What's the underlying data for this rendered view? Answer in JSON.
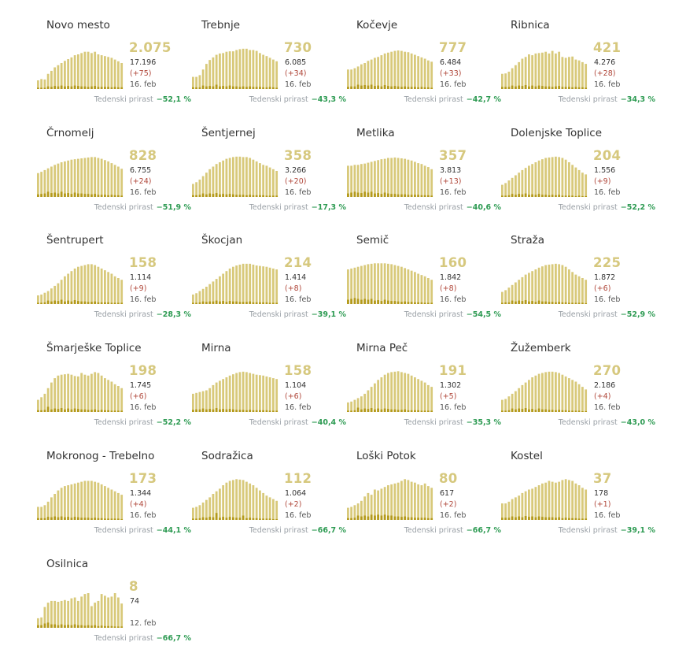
{
  "colors": {
    "bar_light": "#d8c97a",
    "bar_dark": "#b49a1c",
    "active_value": "#d6c87e",
    "new_cases": "#b0473a",
    "growth": "#2e9b53",
    "label_muted": "#9aa0a6"
  },
  "growth_label": "Tedenski prirast",
  "chart_data": [
    {
      "type": "bar",
      "title": "Novo mesto",
      "active": "2.075",
      "total": "17.196",
      "new": "(+75)",
      "date": "16. feb",
      "growth": "−52,1 %",
      "values": [
        20,
        23,
        22,
        35,
        42,
        50,
        55,
        60,
        65,
        69,
        73,
        78,
        80,
        83,
        86,
        86,
        83,
        86,
        80,
        78,
        76,
        74,
        72,
        68,
        64,
        60
      ],
      "new_values": [
        3,
        3,
        3,
        6,
        5,
        7,
        6,
        8,
        6,
        7,
        6,
        8,
        7,
        6,
        6,
        5,
        6,
        7,
        5,
        5,
        5,
        5,
        4,
        5,
        4,
        4
      ]
    },
    {
      "type": "bar",
      "title": "Trebnje",
      "active": "730",
      "total": "6.085",
      "new": "(+34)",
      "date": "16. feb",
      "growth": "−43,3 %",
      "values": [
        28,
        28,
        32,
        45,
        58,
        67,
        73,
        79,
        82,
        83,
        86,
        87,
        87,
        90,
        92,
        93,
        93,
        90,
        90,
        88,
        83,
        79,
        76,
        72,
        68,
        64
      ],
      "new_values": [
        4,
        4,
        4,
        8,
        6,
        7,
        6,
        10,
        6,
        7,
        6,
        8,
        6,
        6,
        5,
        6,
        5,
        6,
        5,
        5,
        5,
        4,
        4,
        5,
        4,
        3
      ]
    },
    {
      "type": "bar",
      "title": "Kočevje",
      "active": "777",
      "total": "6.484",
      "new": "(+33)",
      "date": "16. feb",
      "growth": "−42,7 %",
      "values": [
        45,
        45,
        48,
        52,
        57,
        60,
        65,
        68,
        72,
        74,
        78,
        82,
        84,
        86,
        88,
        89,
        88,
        86,
        85,
        82,
        79,
        76,
        73,
        70,
        66,
        63
      ],
      "new_values": [
        5,
        6,
        6,
        10,
        8,
        9,
        8,
        10,
        7,
        8,
        6,
        9,
        7,
        6,
        7,
        6,
        5,
        6,
        5,
        5,
        5,
        4,
        5,
        4,
        4,
        3
      ]
    },
    {
      "type": "bar",
      "title": "Ribnica",
      "active": "421",
      "total": "4.276",
      "new": "(+28)",
      "date": "16. feb",
      "growth": "−34,3 %",
      "values": [
        35,
        36,
        40,
        48,
        55,
        62,
        70,
        74,
        80,
        78,
        82,
        83,
        84,
        86,
        82,
        88,
        82,
        86,
        74,
        72,
        74,
        75,
        68,
        66,
        62,
        58
      ],
      "new_values": [
        5,
        5,
        5,
        8,
        6,
        8,
        7,
        9,
        6,
        8,
        6,
        8,
        7,
        6,
        6,
        5,
        6,
        7,
        5,
        5,
        5,
        4,
        5,
        4,
        4,
        3
      ]
    },
    {
      "type": "bar",
      "title": "Črnomelj",
      "active": "828",
      "total": "6.755",
      "new": "(+24)",
      "date": "16. feb",
      "growth": "−51,9 %",
      "values": [
        55,
        58,
        62,
        66,
        70,
        74,
        77,
        80,
        82,
        84,
        86,
        87,
        88,
        89,
        90,
        91,
        92,
        92,
        90,
        88,
        85,
        82,
        78,
        74,
        70,
        65
      ],
      "new_values": [
        6,
        7,
        8,
        12,
        9,
        10,
        8,
        12,
        8,
        9,
        7,
        10,
        8,
        8,
        7,
        7,
        6,
        7,
        5,
        5,
        5,
        4,
        5,
        4,
        4,
        3
      ]
    },
    {
      "type": "bar",
      "title": "Šentjernej",
      "active": "358",
      "total": "3.266",
      "new": "(+20)",
      "date": "16. feb",
      "growth": "−17,3 %",
      "values": [
        30,
        34,
        40,
        48,
        56,
        64,
        70,
        76,
        80,
        84,
        88,
        90,
        92,
        93,
        93,
        92,
        92,
        90,
        86,
        82,
        78,
        74,
        72,
        68,
        64,
        60
      ],
      "new_values": [
        4,
        4,
        5,
        8,
        6,
        8,
        7,
        9,
        6,
        7,
        6,
        7,
        6,
        5,
        5,
        5,
        4,
        5,
        4,
        4,
        4,
        4,
        3,
        3,
        3,
        3
      ]
    },
    {
      "type": "bar",
      "title": "Metlika",
      "active": "357",
      "total": "3.813",
      "new": "(+13)",
      "date": "16. feb",
      "growth": "−40,6 %",
      "values": [
        72,
        72,
        74,
        74,
        76,
        77,
        79,
        81,
        83,
        85,
        87,
        88,
        90,
        90,
        91,
        90,
        89,
        88,
        86,
        84,
        81,
        78,
        76,
        72,
        69,
        64
      ],
      "new_values": [
        8,
        10,
        12,
        10,
        9,
        12,
        10,
        12,
        8,
        9,
        7,
        10,
        8,
        7,
        7,
        6,
        6,
        6,
        5,
        5,
        5,
        5,
        4,
        4,
        4,
        3
      ]
    },
    {
      "type": "bar",
      "title": "Dolenjske Toplice",
      "active": "204",
      "total": "1.556",
      "new": "(+9)",
      "date": "16. feb",
      "growth": "−52,2 %",
      "values": [
        28,
        32,
        38,
        44,
        50,
        56,
        62,
        67,
        72,
        76,
        80,
        84,
        87,
        90,
        91,
        92,
        93,
        92,
        90,
        86,
        80,
        74,
        68,
        62,
        56,
        52
      ],
      "new_values": [
        3,
        3,
        4,
        7,
        5,
        7,
        6,
        8,
        5,
        6,
        5,
        7,
        5,
        5,
        4,
        5,
        4,
        5,
        3,
        3,
        3,
        3,
        2,
        3,
        2,
        2
      ]
    },
    {
      "type": "bar",
      "title": "Šentrupert",
      "active": "158",
      "total": "1.114",
      "new": "(+9)",
      "date": "16. feb",
      "growth": "−28,3 %",
      "values": [
        20,
        22,
        26,
        30,
        36,
        42,
        48,
        56,
        64,
        70,
        76,
        82,
        86,
        88,
        90,
        92,
        92,
        90,
        86,
        82,
        78,
        74,
        70,
        64,
        60,
        56
      ],
      "new_values": [
        3,
        3,
        4,
        8,
        6,
        8,
        7,
        10,
        6,
        8,
        6,
        9,
        7,
        6,
        6,
        5,
        5,
        6,
        4,
        4,
        4,
        4,
        3,
        3,
        3,
        3
      ]
    },
    {
      "type": "bar",
      "title": "Škocjan",
      "active": "214",
      "total": "1.414",
      "new": "(+8)",
      "date": "16. feb",
      "growth": "−39,1 %",
      "values": [
        22,
        25,
        30,
        35,
        40,
        46,
        52,
        58,
        64,
        70,
        76,
        82,
        86,
        89,
        91,
        93,
        93,
        93,
        91,
        89,
        88,
        87,
        86,
        84,
        82,
        80
      ],
      "new_values": [
        3,
        3,
        4,
        6,
        5,
        6,
        6,
        8,
        6,
        7,
        5,
        7,
        6,
        6,
        5,
        5,
        5,
        6,
        4,
        4,
        4,
        4,
        4,
        3,
        3,
        3
      ]
    },
    {
      "type": "bar",
      "title": "Semič",
      "active": "160",
      "total": "1.842",
      "new": "(+8)",
      "date": "16. feb",
      "growth": "−54,5 %",
      "values": [
        80,
        82,
        84,
        86,
        88,
        90,
        92,
        93,
        94,
        94,
        94,
        94,
        93,
        92,
        90,
        88,
        86,
        83,
        80,
        77,
        74,
        70,
        67,
        64,
        60,
        56
      ],
      "new_values": [
        10,
        12,
        14,
        12,
        10,
        12,
        10,
        12,
        8,
        9,
        7,
        10,
        8,
        7,
        7,
        6,
        5,
        6,
        5,
        5,
        4,
        4,
        4,
        3,
        3,
        3
      ]
    },
    {
      "type": "bar",
      "title": "Straža",
      "active": "225",
      "total": "1.872",
      "new": "(+6)",
      "date": "16. feb",
      "growth": "−52,9 %",
      "values": [
        28,
        32,
        38,
        44,
        50,
        56,
        62,
        68,
        72,
        76,
        80,
        84,
        87,
        90,
        91,
        92,
        93,
        92,
        90,
        86,
        80,
        74,
        68,
        64,
        60,
        56
      ],
      "new_values": [
        3,
        4,
        4,
        8,
        6,
        8,
        7,
        9,
        6,
        7,
        5,
        8,
        6,
        6,
        5,
        5,
        4,
        5,
        4,
        4,
        3,
        3,
        3,
        3,
        3,
        2
      ]
    },
    {
      "type": "bar",
      "title": "Šmarješke Toplice",
      "active": "198",
      "total": "1.745",
      "new": "(+6)",
      "date": "16. feb",
      "growth": "−52,2 %",
      "values": [
        28,
        34,
        42,
        55,
        68,
        78,
        84,
        86,
        87,
        88,
        86,
        83,
        82,
        90,
        86,
        84,
        88,
        92,
        90,
        84,
        78,
        74,
        70,
        64,
        60,
        55
      ],
      "new_values": [
        4,
        4,
        5,
        12,
        6,
        8,
        7,
        9,
        6,
        8,
        6,
        8,
        7,
        6,
        6,
        5,
        5,
        6,
        4,
        5,
        4,
        4,
        3,
        3,
        3,
        3
      ]
    },
    {
      "type": "bar",
      "title": "Mirna",
      "active": "158",
      "total": "1.104",
      "new": "(+6)",
      "date": "16. feb",
      "growth": "−40,4 %",
      "values": [
        42,
        44,
        46,
        48,
        50,
        55,
        62,
        68,
        72,
        76,
        80,
        84,
        87,
        90,
        92,
        93,
        92,
        90,
        88,
        86,
        85,
        84,
        82,
        80,
        78,
        76
      ],
      "new_values": [
        5,
        6,
        6,
        8,
        6,
        7,
        6,
        9,
        6,
        7,
        6,
        7,
        6,
        5,
        5,
        5,
        4,
        5,
        4,
        4,
        4,
        4,
        4,
        3,
        3,
        3
      ]
    },
    {
      "type": "bar",
      "title": "Mirna Peč",
      "active": "191",
      "total": "1.302",
      "new": "(+5)",
      "date": "16. feb",
      "growth": "−35,3 %",
      "values": [
        22,
        24,
        28,
        32,
        36,
        42,
        50,
        58,
        66,
        74,
        80,
        86,
        90,
        92,
        93,
        94,
        92,
        90,
        88,
        84,
        80,
        76,
        72,
        68,
        62,
        58
      ],
      "new_values": [
        3,
        3,
        4,
        10,
        6,
        8,
        7,
        9,
        6,
        8,
        6,
        8,
        7,
        6,
        6,
        5,
        5,
        6,
        4,
        4,
        4,
        4,
        3,
        3,
        3,
        3
      ]
    },
    {
      "type": "bar",
      "title": "Žužemberk",
      "active": "270",
      "total": "2.186",
      "new": "(+4)",
      "date": "16. feb",
      "growth": "−43,0 %",
      "values": [
        28,
        30,
        36,
        42,
        48,
        55,
        62,
        68,
        74,
        80,
        84,
        88,
        90,
        92,
        93,
        93,
        92,
        90,
        86,
        82,
        78,
        74,
        70,
        64,
        58,
        52
      ],
      "new_values": [
        3,
        3,
        4,
        8,
        6,
        8,
        7,
        9,
        6,
        7,
        5,
        8,
        6,
        6,
        5,
        5,
        4,
        5,
        4,
        4,
        3,
        3,
        3,
        3,
        2,
        2
      ]
    },
    {
      "type": "bar",
      "title": "Mokronog - Trebelno",
      "active": "173",
      "total": "1.344",
      "new": "(+4)",
      "date": "16. feb",
      "growth": "−44,1 %",
      "values": [
        30,
        30,
        34,
        42,
        52,
        60,
        68,
        74,
        78,
        80,
        82,
        84,
        86,
        88,
        90,
        90,
        90,
        88,
        86,
        82,
        78,
        74,
        70,
        66,
        62,
        58
      ],
      "new_values": [
        4,
        4,
        4,
        7,
        6,
        8,
        6,
        8,
        6,
        7,
        5,
        7,
        6,
        5,
        5,
        5,
        4,
        5,
        4,
        4,
        3,
        3,
        3,
        3,
        3,
        2
      ]
    },
    {
      "type": "bar",
      "title": "Sodražica",
      "active": "112",
      "total": "1.064",
      "new": "(+2)",
      "date": "16. feb",
      "growth": "−66,7 %",
      "values": [
        28,
        30,
        34,
        40,
        46,
        52,
        60,
        66,
        72,
        80,
        86,
        90,
        92,
        94,
        93,
        92,
        88,
        84,
        80,
        74,
        68,
        62,
        56,
        52,
        48,
        44
      ],
      "new_values": [
        3,
        3,
        4,
        6,
        5,
        7,
        6,
        16,
        5,
        7,
        5,
        7,
        6,
        5,
        5,
        10,
        4,
        5,
        4,
        4,
        3,
        3,
        3,
        3,
        2,
        2
      ]
    },
    {
      "type": "bar",
      "title": "Loški Potok",
      "active": "80",
      "total": "617",
      "new": "(+2)",
      "date": "16. feb",
      "growth": "−66,7 %",
      "values": [
        28,
        30,
        34,
        38,
        44,
        54,
        62,
        58,
        70,
        68,
        72,
        76,
        80,
        82,
        84,
        86,
        90,
        94,
        92,
        88,
        86,
        82,
        80,
        84,
        78,
        74
      ],
      "new_values": [
        4,
        4,
        5,
        10,
        8,
        10,
        8,
        12,
        10,
        12,
        10,
        12,
        10,
        10,
        8,
        8,
        7,
        8,
        6,
        6,
        5,
        5,
        5,
        5,
        4,
        4
      ]
    },
    {
      "type": "bar",
      "title": "Kostel",
      "active": "37",
      "total": "178",
      "new": "(+1)",
      "date": "16. feb",
      "growth": "−39,1 %",
      "values": [
        38,
        38,
        42,
        48,
        52,
        56,
        62,
        66,
        70,
        72,
        76,
        80,
        84,
        86,
        90,
        88,
        86,
        88,
        92,
        94,
        92,
        90,
        84,
        80,
        74,
        70
      ],
      "new_values": [
        5,
        5,
        5,
        8,
        6,
        8,
        6,
        9,
        7,
        8,
        6,
        8,
        7,
        6,
        6,
        6,
        5,
        6,
        4,
        5,
        4,
        4,
        4,
        3,
        3,
        3
      ]
    },
    {
      "type": "bar",
      "title": "Osilnica",
      "active": "8",
      "total": "74",
      "new": "",
      "date": "12. feb",
      "growth": "−66,7 %",
      "values": [
        22,
        24,
        48,
        58,
        62,
        62,
        60,
        62,
        64,
        62,
        68,
        70,
        62,
        72,
        78,
        80,
        50,
        58,
        62,
        78,
        74,
        70,
        72,
        80,
        70,
        56
      ],
      "new_values": [
        6,
        6,
        10,
        12,
        8,
        8,
        6,
        8,
        6,
        7,
        6,
        8,
        6,
        6,
        5,
        6,
        5,
        6,
        4,
        5,
        4,
        4,
        4,
        3,
        3,
        3
      ]
    }
  ]
}
